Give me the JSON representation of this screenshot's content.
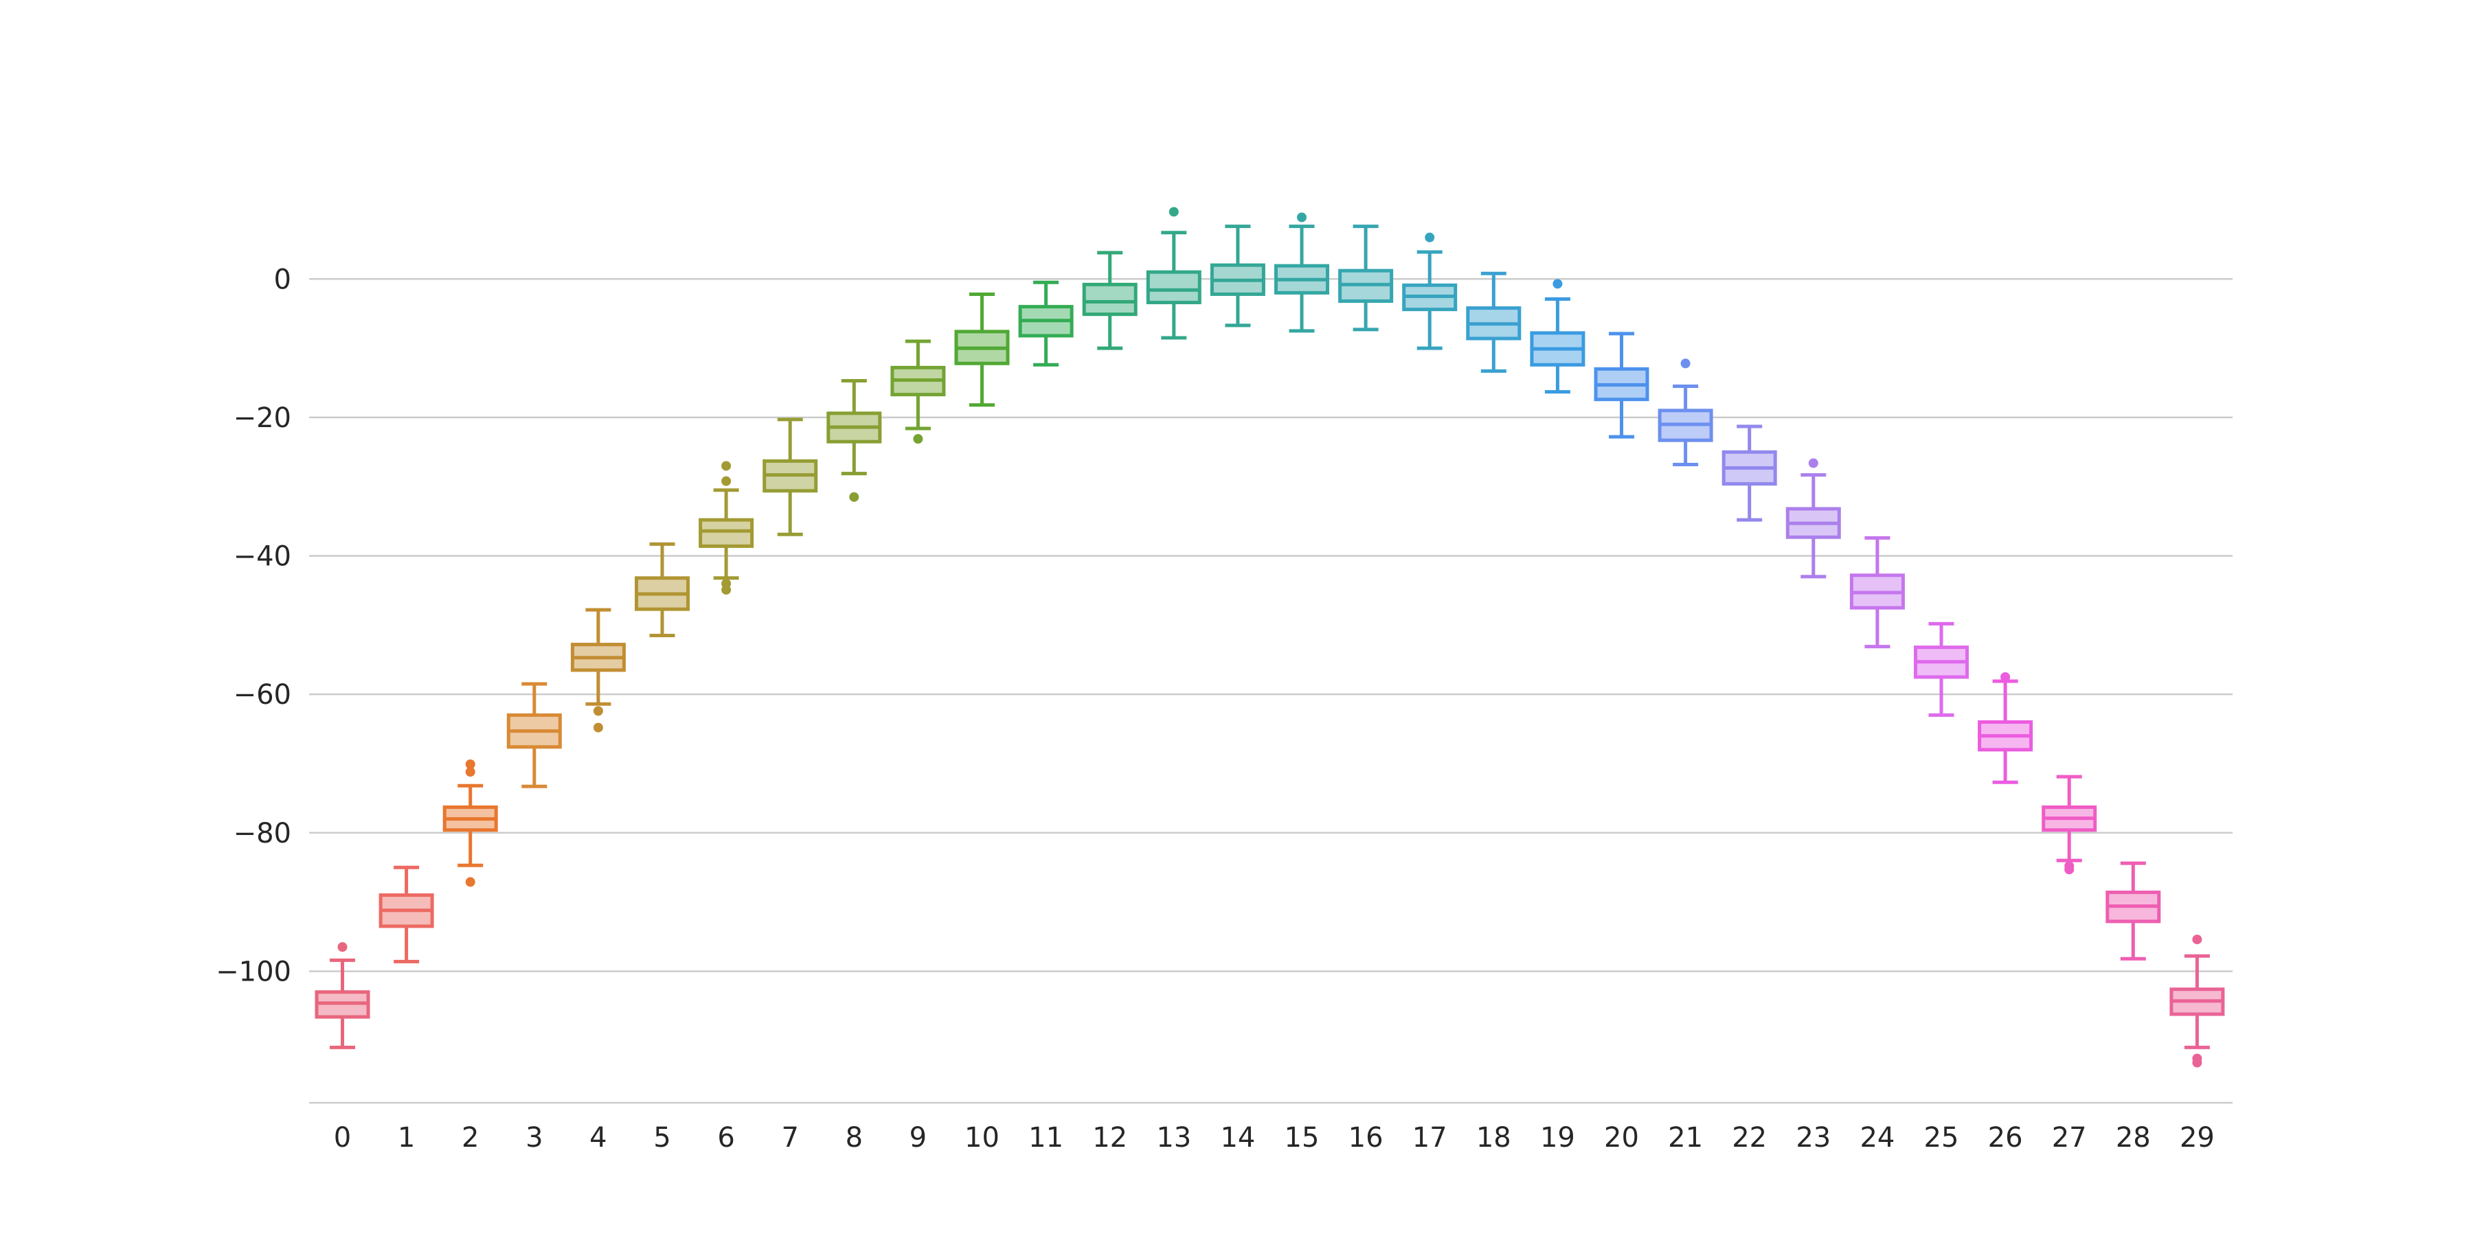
{
  "chart_data": {
    "type": "box",
    "title": "",
    "xlabel": "",
    "ylabel": "",
    "ylim": [
      -119,
      15.5
    ],
    "y_ticks": [
      0,
      -20,
      -40,
      -60,
      -80,
      -100
    ],
    "y_tick_labels": [
      "0",
      "−20",
      "−40",
      "−60",
      "−80",
      "−100"
    ],
    "grid": "horizontal",
    "categories": [
      "0",
      "1",
      "2",
      "3",
      "4",
      "5",
      "6",
      "7",
      "8",
      "9",
      "10",
      "11",
      "12",
      "13",
      "14",
      "15",
      "16",
      "17",
      "18",
      "19",
      "20",
      "21",
      "22",
      "23",
      "24",
      "25",
      "26",
      "27",
      "28",
      "29"
    ],
    "colors": [
      "#e8667d",
      "#ec6a63",
      "#e8772f",
      "#d98a35",
      "#c28e33",
      "#b19533",
      "#a39a33",
      "#969d34",
      "#889f33",
      "#74a432",
      "#50a934",
      "#34ac55",
      "#32a977",
      "#33a889",
      "#34a796",
      "#34a7a3",
      "#36a6b0",
      "#37a4bf",
      "#3aa1d1",
      "#3b9be1",
      "#4d92ec",
      "#6d8fef",
      "#9388ed",
      "#ab80ec",
      "#c576ed",
      "#de6aed",
      "#ec5ce0",
      "#f05cc5",
      "#ee5eb1",
      "#ea6396"
    ],
    "boxes": [
      {
        "whislo": -111.0,
        "q1": -106.6,
        "med": -104.6,
        "q3": -103.0,
        "whishi": -98.4,
        "fliers": [
          -96.5
        ]
      },
      {
        "whislo": -98.6,
        "q1": -93.5,
        "med": -91.2,
        "q3": -89.0,
        "whishi": -85.0,
        "fliers": []
      },
      {
        "whislo": -84.7,
        "q1": -79.6,
        "med": -78.0,
        "q3": -76.3,
        "whishi": -73.2,
        "fliers": [
          -87.1,
          -71.2,
          -70.1
        ]
      },
      {
        "whislo": -73.3,
        "q1": -67.6,
        "med": -65.3,
        "q3": -63.0,
        "whishi": -58.5,
        "fliers": []
      },
      {
        "whislo": -61.4,
        "q1": -56.5,
        "med": -54.7,
        "q3": -52.8,
        "whishi": -47.8,
        "fliers": [
          -62.4,
          -64.8
        ]
      },
      {
        "whislo": -51.5,
        "q1": -47.7,
        "med": -45.5,
        "q3": -43.2,
        "whishi": -38.3,
        "fliers": []
      },
      {
        "whislo": -43.2,
        "q1": -38.6,
        "med": -36.4,
        "q3": -34.8,
        "whishi": -30.5,
        "fliers": [
          -27.0,
          -29.2,
          -44.0,
          -44.9
        ]
      },
      {
        "whislo": -36.9,
        "q1": -30.6,
        "med": -28.3,
        "q3": -26.3,
        "whishi": -20.3,
        "fliers": []
      },
      {
        "whislo": -28.1,
        "q1": -23.5,
        "med": -21.4,
        "q3": -19.4,
        "whishi": -14.7,
        "fliers": [
          -31.5
        ]
      },
      {
        "whislo": -21.6,
        "q1": -16.7,
        "med": -14.6,
        "q3": -12.8,
        "whishi": -9.0,
        "fliers": [
          -23.1
        ]
      },
      {
        "whislo": -18.2,
        "q1": -12.2,
        "med": -10.0,
        "q3": -7.6,
        "whishi": -2.2,
        "fliers": []
      },
      {
        "whislo": -12.4,
        "q1": -8.2,
        "med": -6.0,
        "q3": -4.0,
        "whishi": -0.5,
        "fliers": []
      },
      {
        "whislo": -10.0,
        "q1": -5.1,
        "med": -3.3,
        "q3": -0.8,
        "whishi": 3.8,
        "fliers": []
      },
      {
        "whislo": -8.5,
        "q1": -3.4,
        "med": -1.6,
        "q3": 1.0,
        "whishi": 6.7,
        "fliers": [
          9.7
        ]
      },
      {
        "whislo": -6.7,
        "q1": -2.2,
        "med": -0.2,
        "q3": 2.0,
        "whishi": 7.6,
        "fliers": []
      },
      {
        "whislo": -7.5,
        "q1": -2.0,
        "med": -0.1,
        "q3": 1.9,
        "whishi": 7.6,
        "fliers": [
          8.9
        ]
      },
      {
        "whislo": -7.3,
        "q1": -3.2,
        "med": -0.8,
        "q3": 1.2,
        "whishi": 7.6,
        "fliers": []
      },
      {
        "whislo": -10.0,
        "q1": -4.4,
        "med": -2.5,
        "q3": -0.9,
        "whishi": 3.9,
        "fliers": [
          6.0
        ]
      },
      {
        "whislo": -13.3,
        "q1": -8.6,
        "med": -6.5,
        "q3": -4.2,
        "whishi": 0.8,
        "fliers": []
      },
      {
        "whislo": -16.3,
        "q1": -12.4,
        "med": -10.1,
        "q3": -7.8,
        "whishi": -2.9,
        "fliers": [
          -0.7
        ]
      },
      {
        "whislo": -22.8,
        "q1": -17.4,
        "med": -15.3,
        "q3": -13.0,
        "whishi": -7.9,
        "fliers": []
      },
      {
        "whislo": -26.8,
        "q1": -23.3,
        "med": -21.0,
        "q3": -19.0,
        "whishi": -15.5,
        "fliers": [
          -12.2
        ]
      },
      {
        "whislo": -34.8,
        "q1": -29.6,
        "med": -27.3,
        "q3": -25.0,
        "whishi": -21.3,
        "fliers": []
      },
      {
        "whislo": -43.0,
        "q1": -37.3,
        "med": -35.3,
        "q3": -33.2,
        "whishi": -28.3,
        "fliers": [
          -26.6
        ]
      },
      {
        "whislo": -53.1,
        "q1": -47.5,
        "med": -45.3,
        "q3": -42.8,
        "whishi": -37.4,
        "fliers": []
      },
      {
        "whislo": -63.0,
        "q1": -57.5,
        "med": -55.3,
        "q3": -53.2,
        "whishi": -49.8,
        "fliers": []
      },
      {
        "whislo": -72.7,
        "q1": -68.0,
        "med": -66.0,
        "q3": -64.0,
        "whishi": -58.1,
        "fliers": [
          -57.5
        ]
      },
      {
        "whislo": -84.0,
        "q1": -79.6,
        "med": -77.9,
        "q3": -76.3,
        "whishi": -71.9,
        "fliers": [
          -84.8,
          -85.3
        ]
      },
      {
        "whislo": -98.2,
        "q1": -92.8,
        "med": -90.6,
        "q3": -88.6,
        "whishi": -84.4,
        "fliers": []
      },
      {
        "whislo": -111.0,
        "q1": -106.2,
        "med": -104.3,
        "q3": -102.6,
        "whishi": -97.8,
        "fliers": [
          -95.4,
          -112.6,
          -113.2
        ]
      }
    ]
  }
}
